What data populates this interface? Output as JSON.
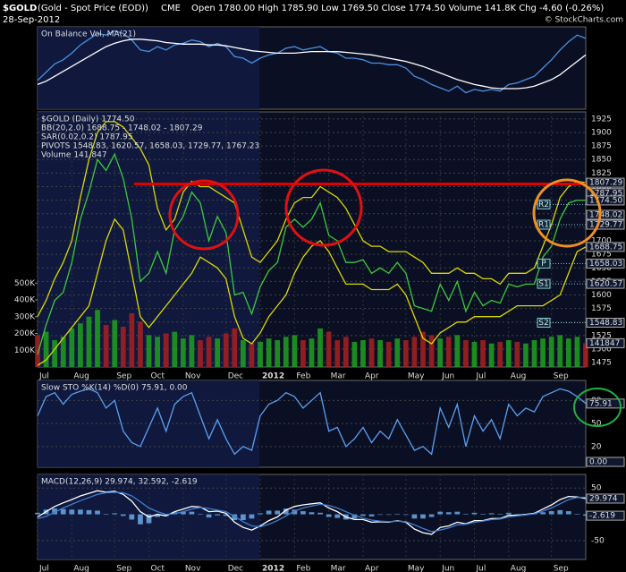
{
  "header": {
    "symbol": "$GOLD",
    "name": "(Gold - Spot Price (EOD))",
    "exchange": "CME",
    "date": "28-Sep-2012",
    "quote": "Open 1780.00  High 1785.90  Low 1769.50  Close 1774.50  Volume 141.8K  Chg -4.60 (-0.26%)",
    "credit": "© StockCharts.com"
  },
  "chart_data": [
    {
      "type": "line",
      "title": "On Balance Vol, MA(21)",
      "ylim": [
        0,
        100
      ],
      "series": [
        {
          "color": "#4a90e0",
          "values": [
            35,
            45,
            55,
            60,
            68,
            78,
            85,
            92,
            90,
            95,
            92,
            84,
            72,
            70,
            76,
            72,
            78,
            80,
            84,
            82,
            76,
            80,
            76,
            64,
            62,
            56,
            62,
            66,
            68,
            74,
            76,
            72,
            74,
            76,
            70,
            68,
            62,
            62,
            60,
            56,
            56,
            54,
            54,
            50,
            40,
            36,
            30,
            26,
            22,
            28,
            20,
            24,
            22,
            24,
            22,
            30,
            32,
            36,
            40,
            50,
            60,
            72,
            82,
            90,
            86
          ]
        },
        {
          "color": "#ffffff",
          "values": [
            30,
            34,
            40,
            46,
            52,
            58,
            64,
            70,
            76,
            80,
            83,
            85,
            85,
            84,
            83,
            81,
            80,
            79,
            79,
            79,
            78,
            78,
            77,
            75,
            73,
            71,
            70,
            69,
            68,
            68,
            68,
            69,
            70,
            70,
            70,
            70,
            69,
            68,
            67,
            66,
            64,
            62,
            60,
            58,
            55,
            52,
            48,
            44,
            40,
            36,
            33,
            30,
            28,
            26,
            25,
            25,
            25,
            26,
            28,
            32,
            36,
            42,
            50,
            58,
            66
          ]
        }
      ]
    },
    {
      "type": "line",
      "title": "$GOLD (Daily) 1774.50",
      "legend": [
        "BB(20,2.0) 1688.75 - 1748.02 - 1807.29",
        "SAR(0.02,0.2) 1787.95",
        "PIVOTS 1548.83, 1620.57, 1658.03, 1729.77, 1767.23",
        "Volume 141,847"
      ],
      "categories": [
        "Jul",
        null,
        null,
        null,
        "Aug",
        null,
        null,
        null,
        null,
        "Sep",
        null,
        null,
        null,
        "Oct",
        null,
        null,
        null,
        "Nov",
        null,
        null,
        null,
        null,
        "Dec",
        null,
        null,
        null,
        "2012",
        null,
        null,
        null,
        "Feb",
        null,
        null,
        null,
        "Mar",
        null,
        null,
        null,
        "Apr",
        null,
        null,
        null,
        null,
        "May",
        null,
        null,
        null,
        "Jun",
        null,
        null,
        null,
        "Jul",
        null,
        null,
        null,
        "Aug",
        null,
        null,
        null,
        null,
        "Sep",
        null,
        null,
        null,
        null
      ],
      "ylim": [
        1467,
        1938
      ],
      "yticks": [
        1475,
        1500,
        1525,
        1550,
        1575,
        1600,
        1625,
        1650,
        1675,
        1700,
        1725,
        1750,
        1775,
        1800,
        1825,
        1850,
        1875,
        1900,
        1925
      ],
      "y2lim": [
        0,
        1520000
      ],
      "y2ticks": [
        {
          "value": 100000,
          "label": "100K"
        },
        {
          "value": 200000,
          "label": "200K"
        },
        {
          "value": 300000,
          "label": "300K"
        },
        {
          "value": 400000,
          "label": "400K"
        },
        {
          "value": 500000,
          "label": "500K"
        }
      ],
      "grid": true,
      "series": [
        {
          "style": "bar",
          "axis": "y2",
          "color": "#a82020",
          "up_color": "#20a020",
          "values": [
            190000,
            210000,
            160000,
            180000,
            230000,
            260000,
            300000,
            340000,
            250000,
            280000,
            240000,
            320000,
            270000,
            190000,
            180000,
            200000,
            210000,
            170000,
            190000,
            160000,
            180000,
            170000,
            200000,
            230000,
            160000,
            140000,
            150000,
            170000,
            160000,
            180000,
            190000,
            160000,
            170000,
            230000,
            210000,
            160000,
            180000,
            150000,
            160000,
            170000,
            160000,
            150000,
            170000,
            160000,
            180000,
            210000,
            190000,
            170000,
            180000,
            190000,
            160000,
            150000,
            160000,
            140000,
            150000,
            160000,
            150000,
            140000,
            160000,
            170000,
            180000,
            190000,
            170000,
            180000,
            141847
          ]
        },
        {
          "style": "line",
          "color": "#3cc83c",
          "values": [
            1490,
            1545,
            1590,
            1605,
            1660,
            1740,
            1790,
            1850,
            1830,
            1860,
            1815,
            1740,
            1625,
            1640,
            1680,
            1640,
            1720,
            1745,
            1790,
            1770,
            1700,
            1745,
            1715,
            1600,
            1605,
            1565,
            1615,
            1645,
            1660,
            1725,
            1740,
            1725,
            1740,
            1770,
            1710,
            1700,
            1660,
            1660,
            1665,
            1640,
            1650,
            1640,
            1660,
            1640,
            1580,
            1575,
            1570,
            1620,
            1590,
            1625,
            1570,
            1605,
            1580,
            1590,
            1585,
            1620,
            1615,
            1620,
            1620,
            1670,
            1690,
            1740,
            1770,
            1775,
            1774.5
          ]
        },
        {
          "style": "line",
          "color": "#d8d800",
          "values": [
            1560,
            1590,
            1630,
            1660,
            1700,
            1780,
            1850,
            1900,
            1920,
            1920,
            1910,
            1890,
            1870,
            1840,
            1760,
            1720,
            1740,
            1790,
            1810,
            1800,
            1800,
            1790,
            1780,
            1770,
            1720,
            1670,
            1660,
            1680,
            1700,
            1740,
            1770,
            1780,
            1780,
            1800,
            1790,
            1780,
            1760,
            1730,
            1700,
            1690,
            1690,
            1680,
            1680,
            1680,
            1670,
            1660,
            1640,
            1640,
            1640,
            1650,
            1640,
            1640,
            1630,
            1630,
            1620,
            1640,
            1640,
            1640,
            1650,
            1690,
            1730,
            1780,
            1800,
            1810,
            1807.29
          ]
        },
        {
          "style": "line",
          "color": "#d8d800",
          "values": [
            1470,
            1480,
            1500,
            1520,
            1540,
            1560,
            1580,
            1640,
            1700,
            1740,
            1720,
            1640,
            1560,
            1540,
            1560,
            1580,
            1600,
            1620,
            1640,
            1670,
            1660,
            1650,
            1630,
            1560,
            1520,
            1510,
            1530,
            1560,
            1580,
            1600,
            1640,
            1670,
            1690,
            1700,
            1680,
            1650,
            1620,
            1620,
            1620,
            1610,
            1610,
            1610,
            1620,
            1600,
            1560,
            1520,
            1510,
            1530,
            1540,
            1550,
            1550,
            1560,
            1560,
            1560,
            1560,
            1570,
            1580,
            1580,
            1580,
            1580,
            1590,
            1600,
            1640,
            1680,
            1688.75
          ]
        }
      ],
      "pivots": [
        {
          "label": "R2",
          "value": 1767.23
        },
        {
          "label": "R1",
          "value": 1729.77
        },
        {
          "label": "P",
          "value": 1658.03
        },
        {
          "label": "S1",
          "value": 1620.57
        },
        {
          "label": "S2",
          "value": 1548.83
        }
      ],
      "hline": {
        "value": 1805,
        "color": "#e00000"
      },
      "tags": [
        1807.29,
        1787.95,
        {
          "value": 1774.5,
          "label": "1774.50"
        },
        1748.02,
        1729.77,
        1688.75,
        1658.03,
        1620.57,
        1548.83
      ],
      "y2tags": [
        141847
      ]
    },
    {
      "type": "line",
      "title": "Slow STO %K(14) %D(0) 75.91, 0.00",
      "ylim": [
        -7,
        106
      ],
      "yticks": [
        20,
        50,
        80
      ],
      "grid": true,
      "series": [
        {
          "style": "line",
          "color": "#5aa0f0",
          "values": [
            60,
            85,
            90,
            75,
            88,
            92,
            95,
            90,
            70,
            80,
            40,
            25,
            20,
            45,
            70,
            40,
            75,
            85,
            90,
            60,
            30,
            55,
            30,
            10,
            20,
            15,
            60,
            75,
            80,
            90,
            85,
            70,
            80,
            90,
            40,
            45,
            20,
            30,
            45,
            25,
            40,
            30,
            55,
            35,
            15,
            20,
            10,
            70,
            45,
            75,
            20,
            60,
            40,
            55,
            30,
            75,
            60,
            70,
            65,
            85,
            90,
            95,
            92,
            85,
            75.91
          ]
        }
      ],
      "tags": [
        75.91,
        {
          "value": 0,
          "label": "0.00"
        }
      ]
    },
    {
      "type": "line",
      "title": "MACD(12,26,9) 29.974, 32.592, -2.619",
      "ylim": [
        -86,
        76
      ],
      "yticks": [
        -50,
        50
      ],
      "grid": true,
      "categories": [
        "Jul",
        null,
        null,
        null,
        "Aug",
        null,
        null,
        null,
        null,
        "Sep",
        null,
        null,
        null,
        "Oct",
        null,
        null,
        null,
        "Nov",
        null,
        null,
        null,
        null,
        "Dec",
        null,
        null,
        null,
        "2012",
        null,
        null,
        null,
        "Feb",
        null,
        null,
        null,
        "Mar",
        null,
        null,
        null,
        "Apr",
        null,
        null,
        null,
        null,
        "May",
        null,
        null,
        null,
        "Jun",
        null,
        null,
        null,
        "Jul",
        null,
        null,
        null,
        "Aug",
        null,
        null,
        null,
        null,
        "Sep",
        null,
        null,
        null,
        null
      ],
      "series": [
        {
          "style": "bar",
          "color": "#6aaae8",
          "values": [
            3,
            9,
            11,
            10,
            9,
            9,
            8,
            7,
            1,
            2,
            -3,
            -10,
            -19,
            -17,
            -5,
            -3,
            4,
            5,
            5,
            1,
            -6,
            -2,
            -3,
            -11,
            -11,
            -8,
            2,
            7,
            7,
            11,
            9,
            6,
            4,
            3,
            -5,
            -7,
            -10,
            -8,
            -3,
            -4,
            -1,
            -1,
            1,
            -1,
            -8,
            -8,
            -5,
            5,
            4,
            5,
            1,
            3,
            1,
            2,
            1,
            3,
            1,
            1,
            1,
            4,
            6,
            8,
            6,
            1,
            -2.619
          ]
        },
        {
          "style": "line",
          "color": "#ffffff",
          "values": [
            -5,
            5,
            15,
            22,
            28,
            35,
            40,
            45,
            42,
            44,
            38,
            25,
            5,
            -5,
            0,
            -3,
            5,
            10,
            15,
            14,
            5,
            6,
            2,
            -15,
            -25,
            -30,
            -22,
            -12,
            -5,
            8,
            15,
            18,
            20,
            22,
            12,
            5,
            -5,
            -10,
            -10,
            -15,
            -14,
            -15,
            -12,
            -15,
            -28,
            -35,
            -38,
            -25,
            -22,
            -15,
            -18,
            -12,
            -12,
            -8,
            -8,
            -2,
            -2,
            0,
            2,
            10,
            18,
            28,
            34,
            33,
            29.974
          ]
        },
        {
          "style": "line",
          "color": "#3d7fd0",
          "values": [
            -8,
            -4,
            4,
            12,
            19,
            26,
            32,
            38,
            41,
            42,
            41,
            35,
            24,
            12,
            5,
            0,
            1,
            5,
            10,
            13,
            11,
            8,
            5,
            -4,
            -14,
            -22,
            -24,
            -19,
            -12,
            -3,
            6,
            12,
            16,
            19,
            17,
            12,
            5,
            -2,
            -7,
            -11,
            -13,
            -14,
            -13,
            -14,
            -20,
            -27,
            -33,
            -30,
            -26,
            -20,
            -19,
            -15,
            -13,
            -10,
            -9,
            -5,
            -3,
            -1,
            1,
            6,
            12,
            20,
            28,
            32,
            32.592
          ]
        }
      ],
      "tags": [
        29.974,
        -2.619
      ]
    }
  ]
}
